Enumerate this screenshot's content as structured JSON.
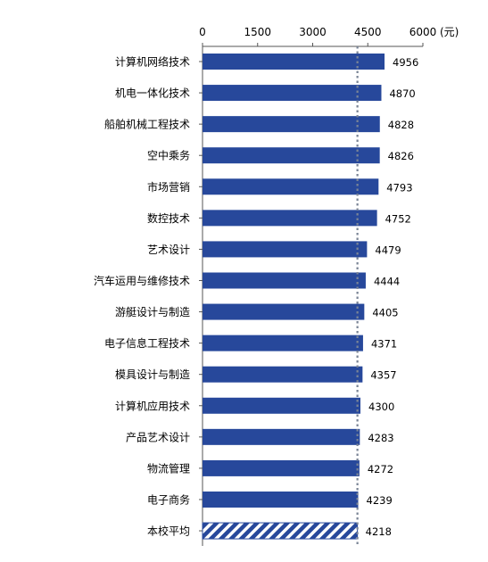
{
  "chart_data": {
    "type": "bar",
    "orientation": "horizontal",
    "categories": [
      "计算机网络技术",
      "机电一体化技术",
      "船舶机械工程技术",
      "空中乘务",
      "市场营销",
      "数控技术",
      "艺术设计",
      "汽车运用与维修技术",
      "游艇设计与制造",
      "电子信息工程技术",
      "模具设计与制造",
      "计算机应用技术",
      "产品艺术设计",
      "物流管理",
      "电子商务",
      "本校平均"
    ],
    "values": [
      4956,
      4870,
      4828,
      4826,
      4793,
      4752,
      4479,
      4444,
      4405,
      4371,
      4357,
      4300,
      4283,
      4272,
      4239,
      4218
    ],
    "data_labels": [
      "4956",
      "4870",
      "4828",
      "4826",
      "4793",
      "4752",
      "4479",
      "4444",
      "4405",
      "4371",
      "4357",
      "4300",
      "4283",
      "4272",
      "4239",
      "4218"
    ],
    "highlight_category": "本校平均",
    "reference_line": 4218,
    "xlim": [
      0,
      6000
    ],
    "x_ticks": [
      "0",
      "1500",
      "3000",
      "4500",
      "6000"
    ],
    "x_unit": "(元)",
    "axis_position": "top",
    "grid": false,
    "legend": "none",
    "colors": {
      "bar": "#27489b",
      "highlight": "#27489b",
      "reference_line": "#7a8496"
    }
  }
}
